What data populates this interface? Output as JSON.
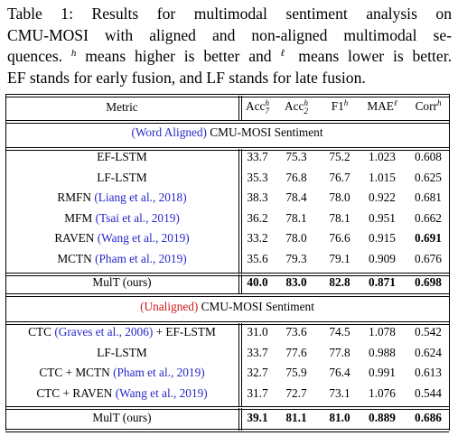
{
  "caption": {
    "line1": "Table 1:  Results for multimodal sentiment analysis on",
    "line2": "CMU-MOSI with aligned and non-aligned multimodal se-",
    "line3a": "quences. ",
    "sup_h": "h",
    "line3b": " means higher is better and ",
    "sup_l": "ℓ",
    "line3c": " means lower is better.",
    "line4": "EF stands for early fusion, and LF stands for late fusion."
  },
  "header": {
    "metric": "Metric",
    "acc7": "Acc",
    "acc7_sub": "7",
    "acc7_sup": "h",
    "acc2": "Acc",
    "acc2_sub": "2",
    "acc2_sup": "h",
    "f1": "F1",
    "f1_sup": "h",
    "mae": "MAE",
    "mae_sup": "ℓ",
    "corr": "Corr",
    "corr_sup": "h"
  },
  "sections": [
    {
      "tag": "(Word Aligned)",
      "title": " CMU-MOSI Sentiment",
      "rows": [
        {
          "name": "EF-LSTM",
          "cite": "",
          "values": [
            "33.7",
            "75.3",
            "75.2",
            "1.023",
            "0.608"
          ]
        },
        {
          "name": "LF-LSTM",
          "cite": "",
          "values": [
            "35.3",
            "76.8",
            "76.7",
            "1.015",
            "0.625"
          ]
        },
        {
          "name": "RMFN ",
          "cite": "(Liang et al., 2018)",
          "values": [
            "38.3",
            "78.4",
            "78.0",
            "0.922",
            "0.681"
          ]
        },
        {
          "name": "MFM ",
          "cite": "(Tsai et al., 2019)",
          "values": [
            "36.2",
            "78.1",
            "78.1",
            "0.951",
            "0.662"
          ]
        },
        {
          "name": "RAVEN ",
          "cite": "(Wang et al., 2019)",
          "values": [
            "33.2",
            "78.0",
            "76.6",
            "0.915",
            "0.691"
          ]
        },
        {
          "name": "MCTN ",
          "cite": "(Pham et al., 2019)",
          "values": [
            "35.6",
            "79.3",
            "79.1",
            "0.909",
            "0.676"
          ]
        }
      ],
      "ours": {
        "name": "MulT (ours)",
        "values": [
          "40.0",
          "83.0",
          "82.8",
          "0.871",
          "0.698"
        ]
      }
    },
    {
      "tag": "(Unaligned)",
      "title": " CMU-MOSI Sentiment",
      "rows": [
        {
          "name": "CTC ",
          "cite": "(Graves et al., 2006)",
          "suffix": " + EF-LSTM",
          "values": [
            "31.0",
            "73.6",
            "74.5",
            "1.078",
            "0.542"
          ]
        },
        {
          "name": "LF-LSTM",
          "cite": "",
          "values": [
            "33.7",
            "77.6",
            "77.8",
            "0.988",
            "0.624"
          ]
        },
        {
          "name": "CTC + MCTN ",
          "cite": "(Pham et al., 2019)",
          "values": [
            "32.7",
            "75.9",
            "76.4",
            "0.991",
            "0.613"
          ]
        },
        {
          "name": "CTC + RAVEN ",
          "cite": "(Wang et al., 2019)",
          "values": [
            "31.7",
            "72.7",
            "73.1",
            "1.076",
            "0.544"
          ]
        }
      ],
      "ours": {
        "name": "MulT (ours)",
        "values": [
          "39.1",
          "81.1",
          "81.0",
          "0.889",
          "0.686"
        ]
      }
    }
  ]
}
